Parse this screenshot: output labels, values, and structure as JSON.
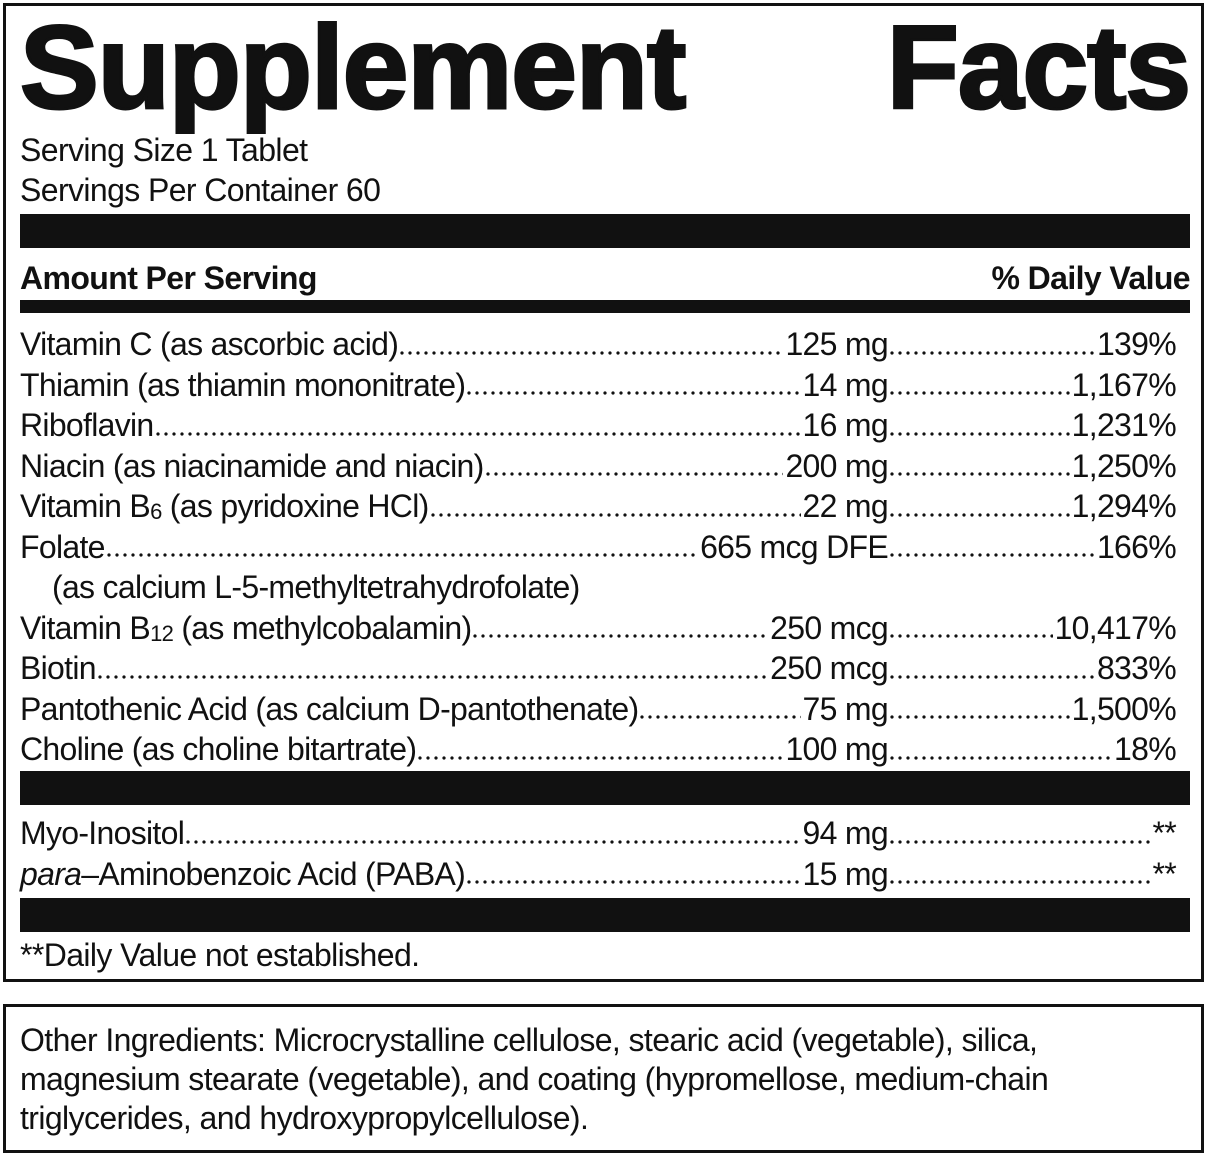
{
  "title": {
    "word1": "Supplement",
    "word2": "Facts"
  },
  "serving_size": "Serving Size 1 Tablet",
  "servings_per_container": "Servings Per Container 60",
  "header": {
    "amount": "Amount Per Serving",
    "dv": "% Daily Value"
  },
  "nutrients": [
    {
      "name": "Vitamin C (as ascorbic acid)",
      "sub": "",
      "rest": "",
      "amount": " 125 mg",
      "dv": "139%"
    },
    {
      "name": "Thiamin (as thiamin mononitrate) ",
      "sub": "",
      "rest": "",
      "amount": " 14 mg",
      "dv": "1,167%"
    },
    {
      "name": "Riboflavin",
      "sub": "",
      "rest": "",
      "amount": " 16 mg",
      "dv": "1,231%"
    },
    {
      "name": "Niacin (as niacinamide and niacin)",
      "sub": "",
      "rest": "",
      "amount": " 200 mg",
      "dv": "1,250%"
    },
    {
      "name": "Vitamin B",
      "sub": "6",
      "rest": " (as pyridoxine HCl)",
      "amount": " 22 mg",
      "dv": "1,294%"
    },
    {
      "name": "Folate ",
      "sub": "",
      "rest": "",
      "amount": " 665 mcg DFE",
      "dv": "166%"
    },
    {
      "name": "Vitamin B",
      "sub": "12",
      "rest": " (as methylcobalamin)",
      "amount": "250 mcg",
      "dv": "10,417%"
    },
    {
      "name": "Biotin",
      "sub": "",
      "rest": "",
      "amount": "250 mcg",
      "dv": "833%"
    },
    {
      "name": "Pantothenic Acid (as calcium D-pantothenate)",
      "sub": "",
      "rest": "",
      "amount": " 75 mg",
      "dv": "1,500%"
    },
    {
      "name": "Choline (as choline bitartrate) ",
      "sub": "",
      "rest": "",
      "amount": " 100 mg",
      "dv": "18%"
    }
  ],
  "folate_source": "(as calcium L-5-methyltetrahydrofolate)",
  "other_nutrients": [
    {
      "italic": "",
      "name": "Myo-Inositol",
      "amount": " 94 mg",
      "dv": "**"
    },
    {
      "italic": "para",
      "name": "–Aminobenzoic Acid (PABA) ",
      "amount": " 15 mg",
      "dv": "**"
    }
  ],
  "footnote": "**Daily Value not established.",
  "other_ingredients": "Other Ingredients: Microcrystalline cellulose, stearic acid (vegetable), silica, magnesium stearate (vegetable), and coating (hypromellose, medium-chain triglycerides, and hydroxypropylcellulose)."
}
